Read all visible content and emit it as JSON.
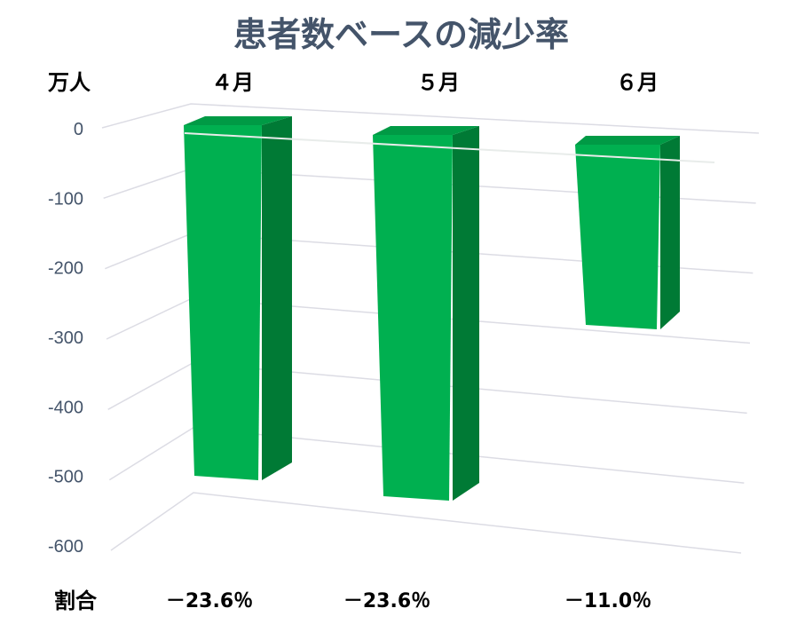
{
  "chart_data": {
    "type": "bar",
    "title": "患者数ベースの減少率",
    "unit_label": "万人",
    "categories": [
      "４月",
      "５月",
      "６月"
    ],
    "values": [
      -500,
      -515,
      -260
    ],
    "ylim": [
      -600,
      0
    ],
    "yticks": [
      0,
      -100,
      -200,
      -300,
      -400,
      -500,
      -600
    ],
    "grid": true,
    "ratio_label": "割合",
    "ratios": [
      "－23.6％",
      "－23.6％",
      "－11.0％"
    ],
    "colors": {
      "title": "#44546a",
      "bar_front": "#00b050",
      "bar_side": "#007a35",
      "bar_top": "#009a45",
      "grid": "#dcdce4"
    }
  }
}
